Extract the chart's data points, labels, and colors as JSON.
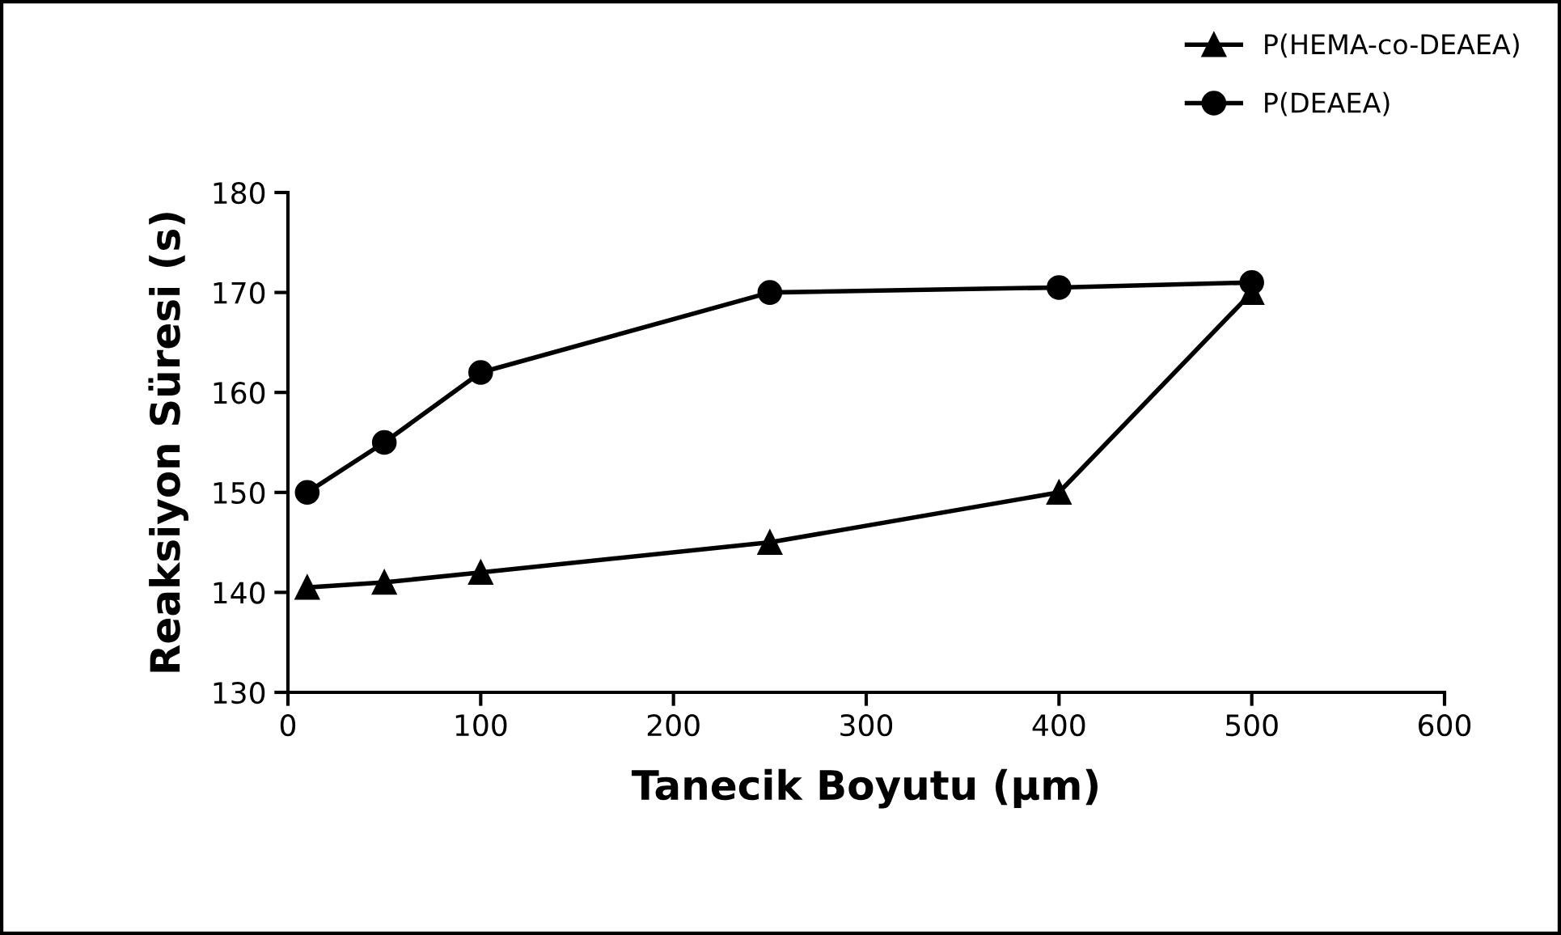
{
  "chart_data": {
    "type": "line",
    "xlabel": "Tanecik Boyutu (µm)",
    "ylabel": "Reaksiyon Süresi (s)",
    "x": [
      10,
      50,
      100,
      250,
      400,
      500
    ],
    "series": [
      {
        "name": "P(HEMA-co-DEAEA)",
        "color": "#000000",
        "marker": "triangle",
        "values": [
          140.5,
          141,
          142,
          145,
          150,
          170
        ]
      },
      {
        "name": "P(DEAEA)",
        "color": "#000000",
        "marker": "circle",
        "values": [
          150,
          155,
          162,
          170,
          170.5,
          171
        ]
      }
    ],
    "xlim": [
      0,
      600
    ],
    "xticks": [
      0,
      100,
      200,
      300,
      400,
      500,
      600
    ],
    "ylim": [
      130,
      180
    ],
    "yticks": [
      130,
      140,
      150,
      160,
      170,
      180
    ],
    "grid": false,
    "legend": "top right",
    "line_style": "solid"
  }
}
